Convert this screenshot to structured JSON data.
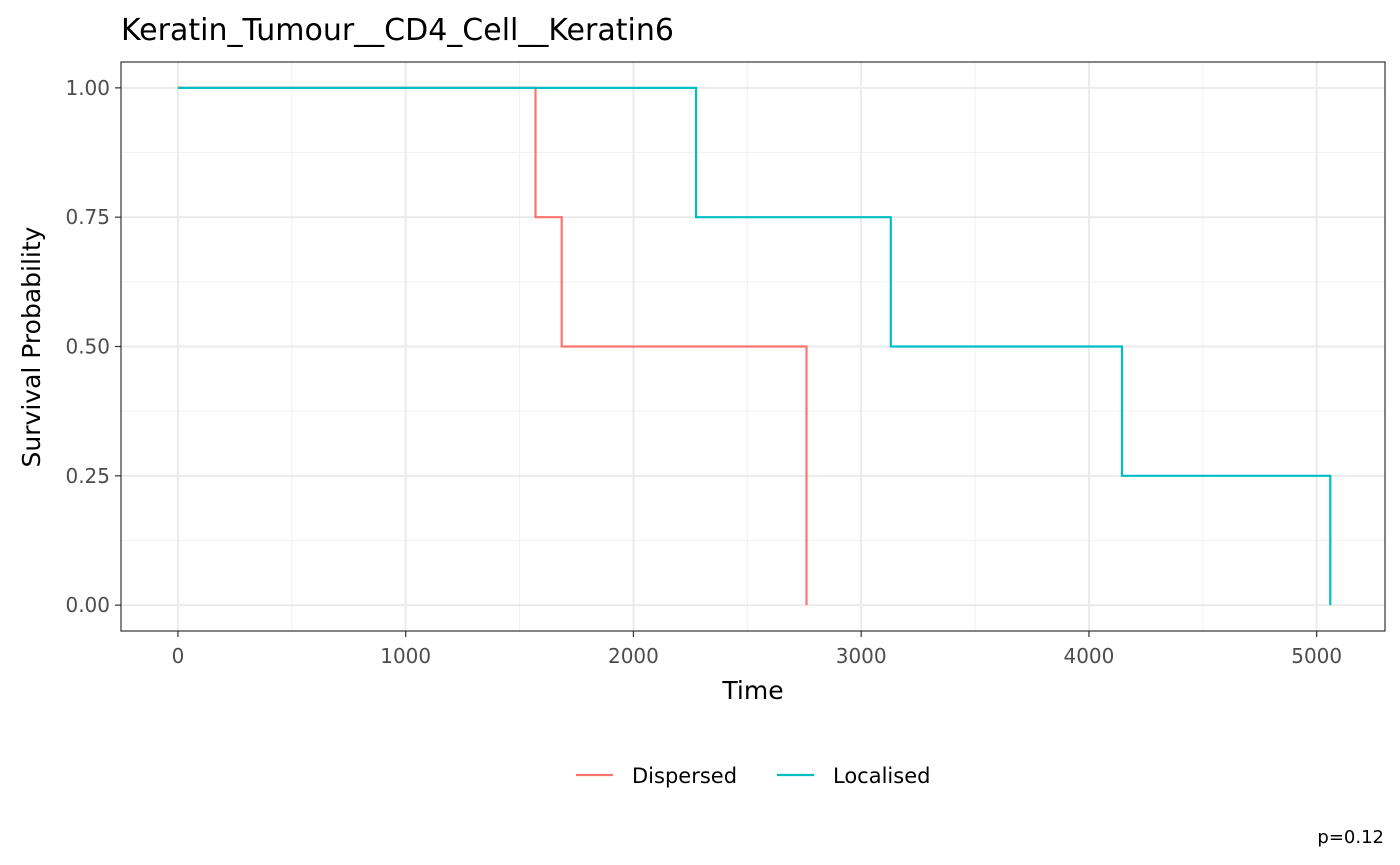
{
  "chart_data": {
    "type": "line",
    "subtype": "step",
    "title": "Keratin_Tumour__CD4_Cell__Keratin6",
    "xlabel": "Time",
    "ylabel": "Survival Probability",
    "xlim": [
      -250,
      5300
    ],
    "ylim": [
      -0.05,
      1.05
    ],
    "x_ticks": [
      0,
      1000,
      2000,
      3000,
      4000,
      5000
    ],
    "x_tick_labels": [
      "0",
      "1000",
      "2000",
      "3000",
      "4000",
      "5000"
    ],
    "y_ticks": [
      0,
      0.25,
      0.5,
      0.75,
      1.0
    ],
    "y_tick_labels": [
      "0.00",
      "0.25",
      "0.50",
      "0.75",
      "1.00"
    ],
    "grid": true,
    "legend_position": "bottom",
    "series": [
      {
        "name": "Dispersed",
        "color": "#F8766D",
        "x": [
          0,
          1570,
          1570,
          1685,
          1685,
          2760,
          2760
        ],
        "y": [
          1.0,
          1.0,
          0.75,
          0.75,
          0.5,
          0.5,
          0.0
        ]
      },
      {
        "name": "Localised",
        "color": "#00BFC4",
        "x": [
          0,
          2275,
          2275,
          3130,
          3130,
          4145,
          4145,
          5060,
          5060
        ],
        "y": [
          1.0,
          1.0,
          0.75,
          0.75,
          0.5,
          0.5,
          0.25,
          0.25,
          0.0
        ]
      }
    ],
    "annotation": "p=0.12"
  }
}
